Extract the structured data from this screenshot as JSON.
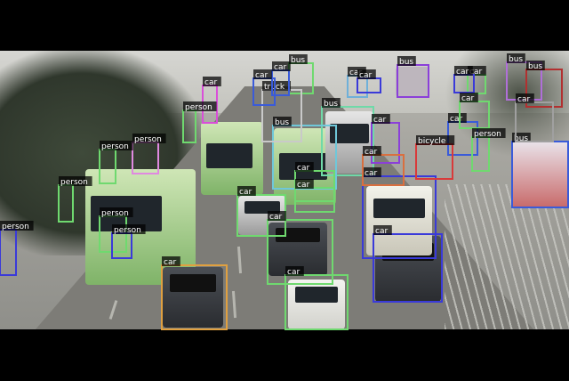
{
  "image": {
    "letterbox_color": "#000000"
  },
  "detections": [
    {
      "label": "bus",
      "color": "#b06fd9"
    },
    {
      "label": "bus",
      "color": "#8b3fd9"
    },
    {
      "label": "bus",
      "color": "#b23030"
    },
    {
      "label": "bus",
      "color": "#6fd96f"
    },
    {
      "label": "bus",
      "color": "#6fd9a8"
    },
    {
      "label": "bus",
      "color": "#6fc7d9"
    },
    {
      "label": "bus",
      "color": "#3a5bd9"
    },
    {
      "label": "truck",
      "color": "#c9c9c9"
    },
    {
      "label": "car",
      "color": "#d94fd9"
    },
    {
      "label": "car",
      "color": "#6fd96f"
    },
    {
      "label": "car",
      "color": "#8b3fd9"
    },
    {
      "label": "car",
      "color": "#3a5bd9"
    },
    {
      "label": "car",
      "color": "#6fd96f"
    },
    {
      "label": "car",
      "color": "#3a3ad9"
    },
    {
      "label": "car",
      "color": "#6fd96f"
    },
    {
      "label": "car",
      "color": "#3a5bd9"
    },
    {
      "label": "car",
      "color": "#e0a040"
    },
    {
      "label": "car",
      "color": "#6fd96f"
    },
    {
      "label": "car",
      "color": "#6fd96f"
    },
    {
      "label": "car",
      "color": "#6fd96f"
    },
    {
      "label": "car",
      "color": "#6fd96f"
    },
    {
      "label": "car",
      "color": "#3a3ad9"
    },
    {
      "label": "car",
      "color": "#3a3ad9"
    },
    {
      "label": "car",
      "color": "#d96f3f"
    },
    {
      "label": "car",
      "color": "#6fb0d9"
    },
    {
      "label": "car",
      "color": "#a0a0a0"
    },
    {
      "label": "car",
      "color": "#3a5bd9"
    },
    {
      "label": "car",
      "color": "#3a3ad9"
    },
    {
      "label": "person",
      "color": "#e089e0"
    },
    {
      "label": "person",
      "color": "#6fd96f"
    },
    {
      "label": "person",
      "color": "#6fd96f"
    },
    {
      "label": "person",
      "color": "#6fd96f"
    },
    {
      "label": "person",
      "color": "#6fd96f"
    },
    {
      "label": "person",
      "color": "#3a3ad9"
    },
    {
      "label": "person",
      "color": "#3a3ad9"
    },
    {
      "label": "person",
      "color": "#6fd96f"
    },
    {
      "label": "bicycle",
      "color": "#d93a3a"
    }
  ]
}
